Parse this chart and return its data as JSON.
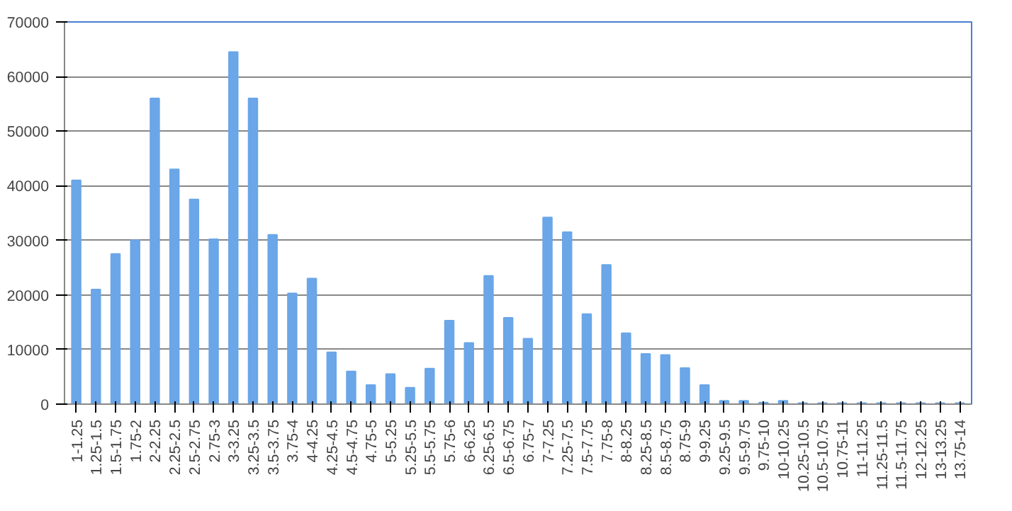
{
  "chart_data": {
    "type": "bar",
    "categories": [
      "1-1.25",
      "1.25-1.5",
      "1.5-1.75",
      "1.75-2",
      "2-2.25",
      "2.25-2.5",
      "2.5-2.75",
      "2.75-3",
      "3-3.25",
      "3.25-3.5",
      "3.5-3.75",
      "3.75-4",
      "4-4.25",
      "4.25-4.5",
      "4.5-4.75",
      "4.75-5",
      "5-5.25",
      "5.25-5.5",
      "5.5-5.75",
      "5.75-6",
      "6-6.25",
      "6.25-6.5",
      "6.5-6.75",
      "6.75-7",
      "7-7.25",
      "7.25-7.5",
      "7.5-7.75",
      "7.75-8",
      "8-8.25",
      "8.25-8.5",
      "8.5-8.75",
      "8.75-9",
      "9-9.25",
      "9.25-9.5",
      "9.5-9.75",
      "9.75-10",
      "10-10.25",
      "10.25-10.5",
      "10.5-10.75",
      "10.75-11",
      "11-11.25",
      "11.25-11.5",
      "11.5-11.75",
      "12-12.25",
      "13-13.25",
      "13.75-14"
    ],
    "values": [
      41000,
      21000,
      27500,
      30000,
      56000,
      43000,
      37500,
      30200,
      64500,
      56000,
      31000,
      20300,
      23000,
      9500,
      6000,
      3500,
      5500,
      3000,
      6500,
      15300,
      11200,
      23500,
      15800,
      12000,
      34200,
      31500,
      16500,
      25500,
      13000,
      9200,
      9000,
      6600,
      3500,
      600,
      600,
      300,
      600,
      200,
      200,
      200,
      200,
      200,
      200,
      200,
      200,
      200
    ],
    "color": "#6aa6e8",
    "ylim": [
      0,
      70000
    ],
    "yticks": [
      0,
      10000,
      20000,
      30000,
      40000,
      50000,
      60000,
      70000
    ],
    "grid": "y"
  }
}
